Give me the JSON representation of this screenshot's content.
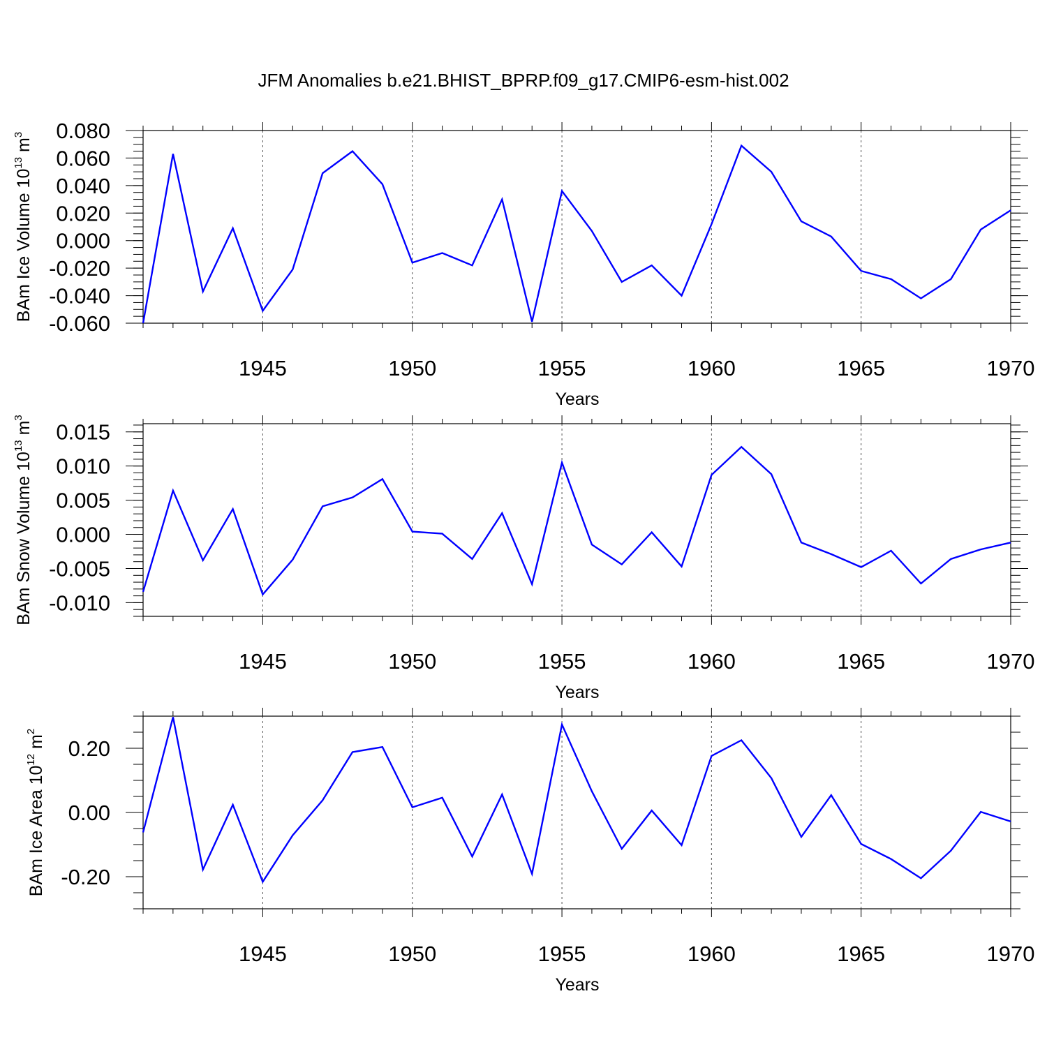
{
  "figure": {
    "title": "JFM Anomalies b.e21.BHIST_BPRP.f09_g17.CMIP6-esm-hist.002"
  },
  "chart_data": [
    {
      "type": "line",
      "title": "",
      "xlabel": "Years",
      "ylabel": {
        "prefix": "BAm Ice Volume 10",
        "exp": "13",
        "unit": " m",
        "unit_exp": "3"
      },
      "xlim": [
        1941,
        1970
      ],
      "ylim": [
        -0.06,
        0.08
      ],
      "x_ticks": [
        1945,
        1950,
        1955,
        1960,
        1965,
        1970
      ],
      "x_tick_labels": [
        "1945",
        "1950",
        "1955",
        "1960",
        "1965",
        "1970"
      ],
      "y_ticks": [
        -0.06,
        -0.04,
        -0.02,
        0.0,
        0.02,
        0.04,
        0.06,
        0.08
      ],
      "y_tick_labels": [
        "-0.060",
        "-0.040",
        "-0.020",
        "0.000",
        "0.020",
        "0.040",
        "0.060",
        "0.080"
      ],
      "y_minor_step": 0.005,
      "grid": "vertical-dashed-at-major-x",
      "color": "#0000ff",
      "x": [
        1941,
        1942,
        1943,
        1944,
        1945,
        1946,
        1947,
        1948,
        1949,
        1950,
        1951,
        1952,
        1953,
        1954,
        1955,
        1956,
        1957,
        1958,
        1959,
        1960,
        1961,
        1962,
        1963,
        1964,
        1965,
        1966,
        1967,
        1968,
        1969,
        1970
      ],
      "values": [
        -0.06,
        0.063,
        -0.037,
        0.009,
        -0.051,
        -0.021,
        0.049,
        0.065,
        0.041,
        -0.016,
        -0.009,
        -0.018,
        0.03,
        -0.059,
        0.036,
        0.007,
        -0.03,
        -0.018,
        -0.04,
        0.012,
        0.069,
        0.05,
        0.014,
        0.003,
        -0.022,
        -0.028,
        -0.042,
        -0.028,
        0.008,
        0.022
      ]
    },
    {
      "type": "line",
      "title": "",
      "xlabel": "Years",
      "ylabel": {
        "prefix": "BAm Snow Volume 10",
        "exp": "13",
        "unit": " m",
        "unit_exp": "3"
      },
      "xlim": [
        1941,
        1970
      ],
      "ylim": [
        -0.012,
        0.0162
      ],
      "x_ticks": [
        1945,
        1950,
        1955,
        1960,
        1965,
        1970
      ],
      "x_tick_labels": [
        "1945",
        "1950",
        "1955",
        "1960",
        "1965",
        "1970"
      ],
      "y_ticks": [
        -0.01,
        -0.005,
        0.0,
        0.005,
        0.01,
        0.015
      ],
      "y_tick_labels": [
        "-0.010",
        "-0.005",
        "0.000",
        "0.005",
        "0.010",
        "0.015"
      ],
      "y_minor_step": 0.001,
      "grid": "vertical-dashed-at-major-x",
      "color": "#0000ff",
      "x": [
        1941,
        1942,
        1943,
        1944,
        1945,
        1946,
        1947,
        1948,
        1949,
        1950,
        1951,
        1952,
        1953,
        1954,
        1955,
        1956,
        1957,
        1958,
        1959,
        1960,
        1961,
        1962,
        1963,
        1964,
        1965,
        1966,
        1967,
        1968,
        1969,
        1970
      ],
      "values": [
        -0.0084,
        0.0064,
        -0.0038,
        0.0037,
        -0.0088,
        -0.0037,
        0.0041,
        0.0054,
        0.0081,
        0.0004,
        0.0001,
        -0.0036,
        0.0031,
        -0.0073,
        0.0105,
        -0.0015,
        -0.0044,
        0.0003,
        -0.0047,
        0.0087,
        0.0128,
        0.0088,
        -0.0012,
        -0.0029,
        -0.0048,
        -0.0024,
        -0.0072,
        -0.0036,
        -0.0022,
        -0.0012
      ]
    },
    {
      "type": "line",
      "title": "",
      "xlabel": "Years",
      "ylabel": {
        "prefix": "BAm Ice Area 10",
        "exp": "12",
        "unit": " m",
        "unit_exp": "2"
      },
      "xlim": [
        1941,
        1970
      ],
      "ylim": [
        -0.3,
        0.3
      ],
      "x_ticks": [
        1945,
        1950,
        1955,
        1960,
        1965,
        1970
      ],
      "x_tick_labels": [
        "1945",
        "1950",
        "1955",
        "1960",
        "1965",
        "1970"
      ],
      "y_ticks": [
        -0.2,
        0.0,
        0.2
      ],
      "y_tick_labels": [
        "-0.20",
        "0.00",
        "0.20"
      ],
      "y_minor_step": 0.05,
      "grid": "vertical-dashed-at-major-x",
      "color": "#0000ff",
      "x": [
        1941,
        1942,
        1943,
        1944,
        1945,
        1946,
        1947,
        1948,
        1949,
        1950,
        1951,
        1952,
        1953,
        1954,
        1955,
        1956,
        1957,
        1958,
        1959,
        1960,
        1961,
        1962,
        1963,
        1964,
        1965,
        1966,
        1967,
        1968,
        1969,
        1970
      ],
      "values": [
        -0.062,
        0.297,
        -0.178,
        0.024,
        -0.216,
        -0.071,
        0.038,
        0.188,
        0.204,
        0.016,
        0.046,
        -0.137,
        0.056,
        -0.191,
        0.274,
        0.066,
        -0.113,
        0.006,
        -0.102,
        0.176,
        0.225,
        0.107,
        -0.076,
        0.054,
        -0.098,
        -0.145,
        -0.205,
        -0.119,
        0.002,
        -0.028
      ]
    }
  ]
}
